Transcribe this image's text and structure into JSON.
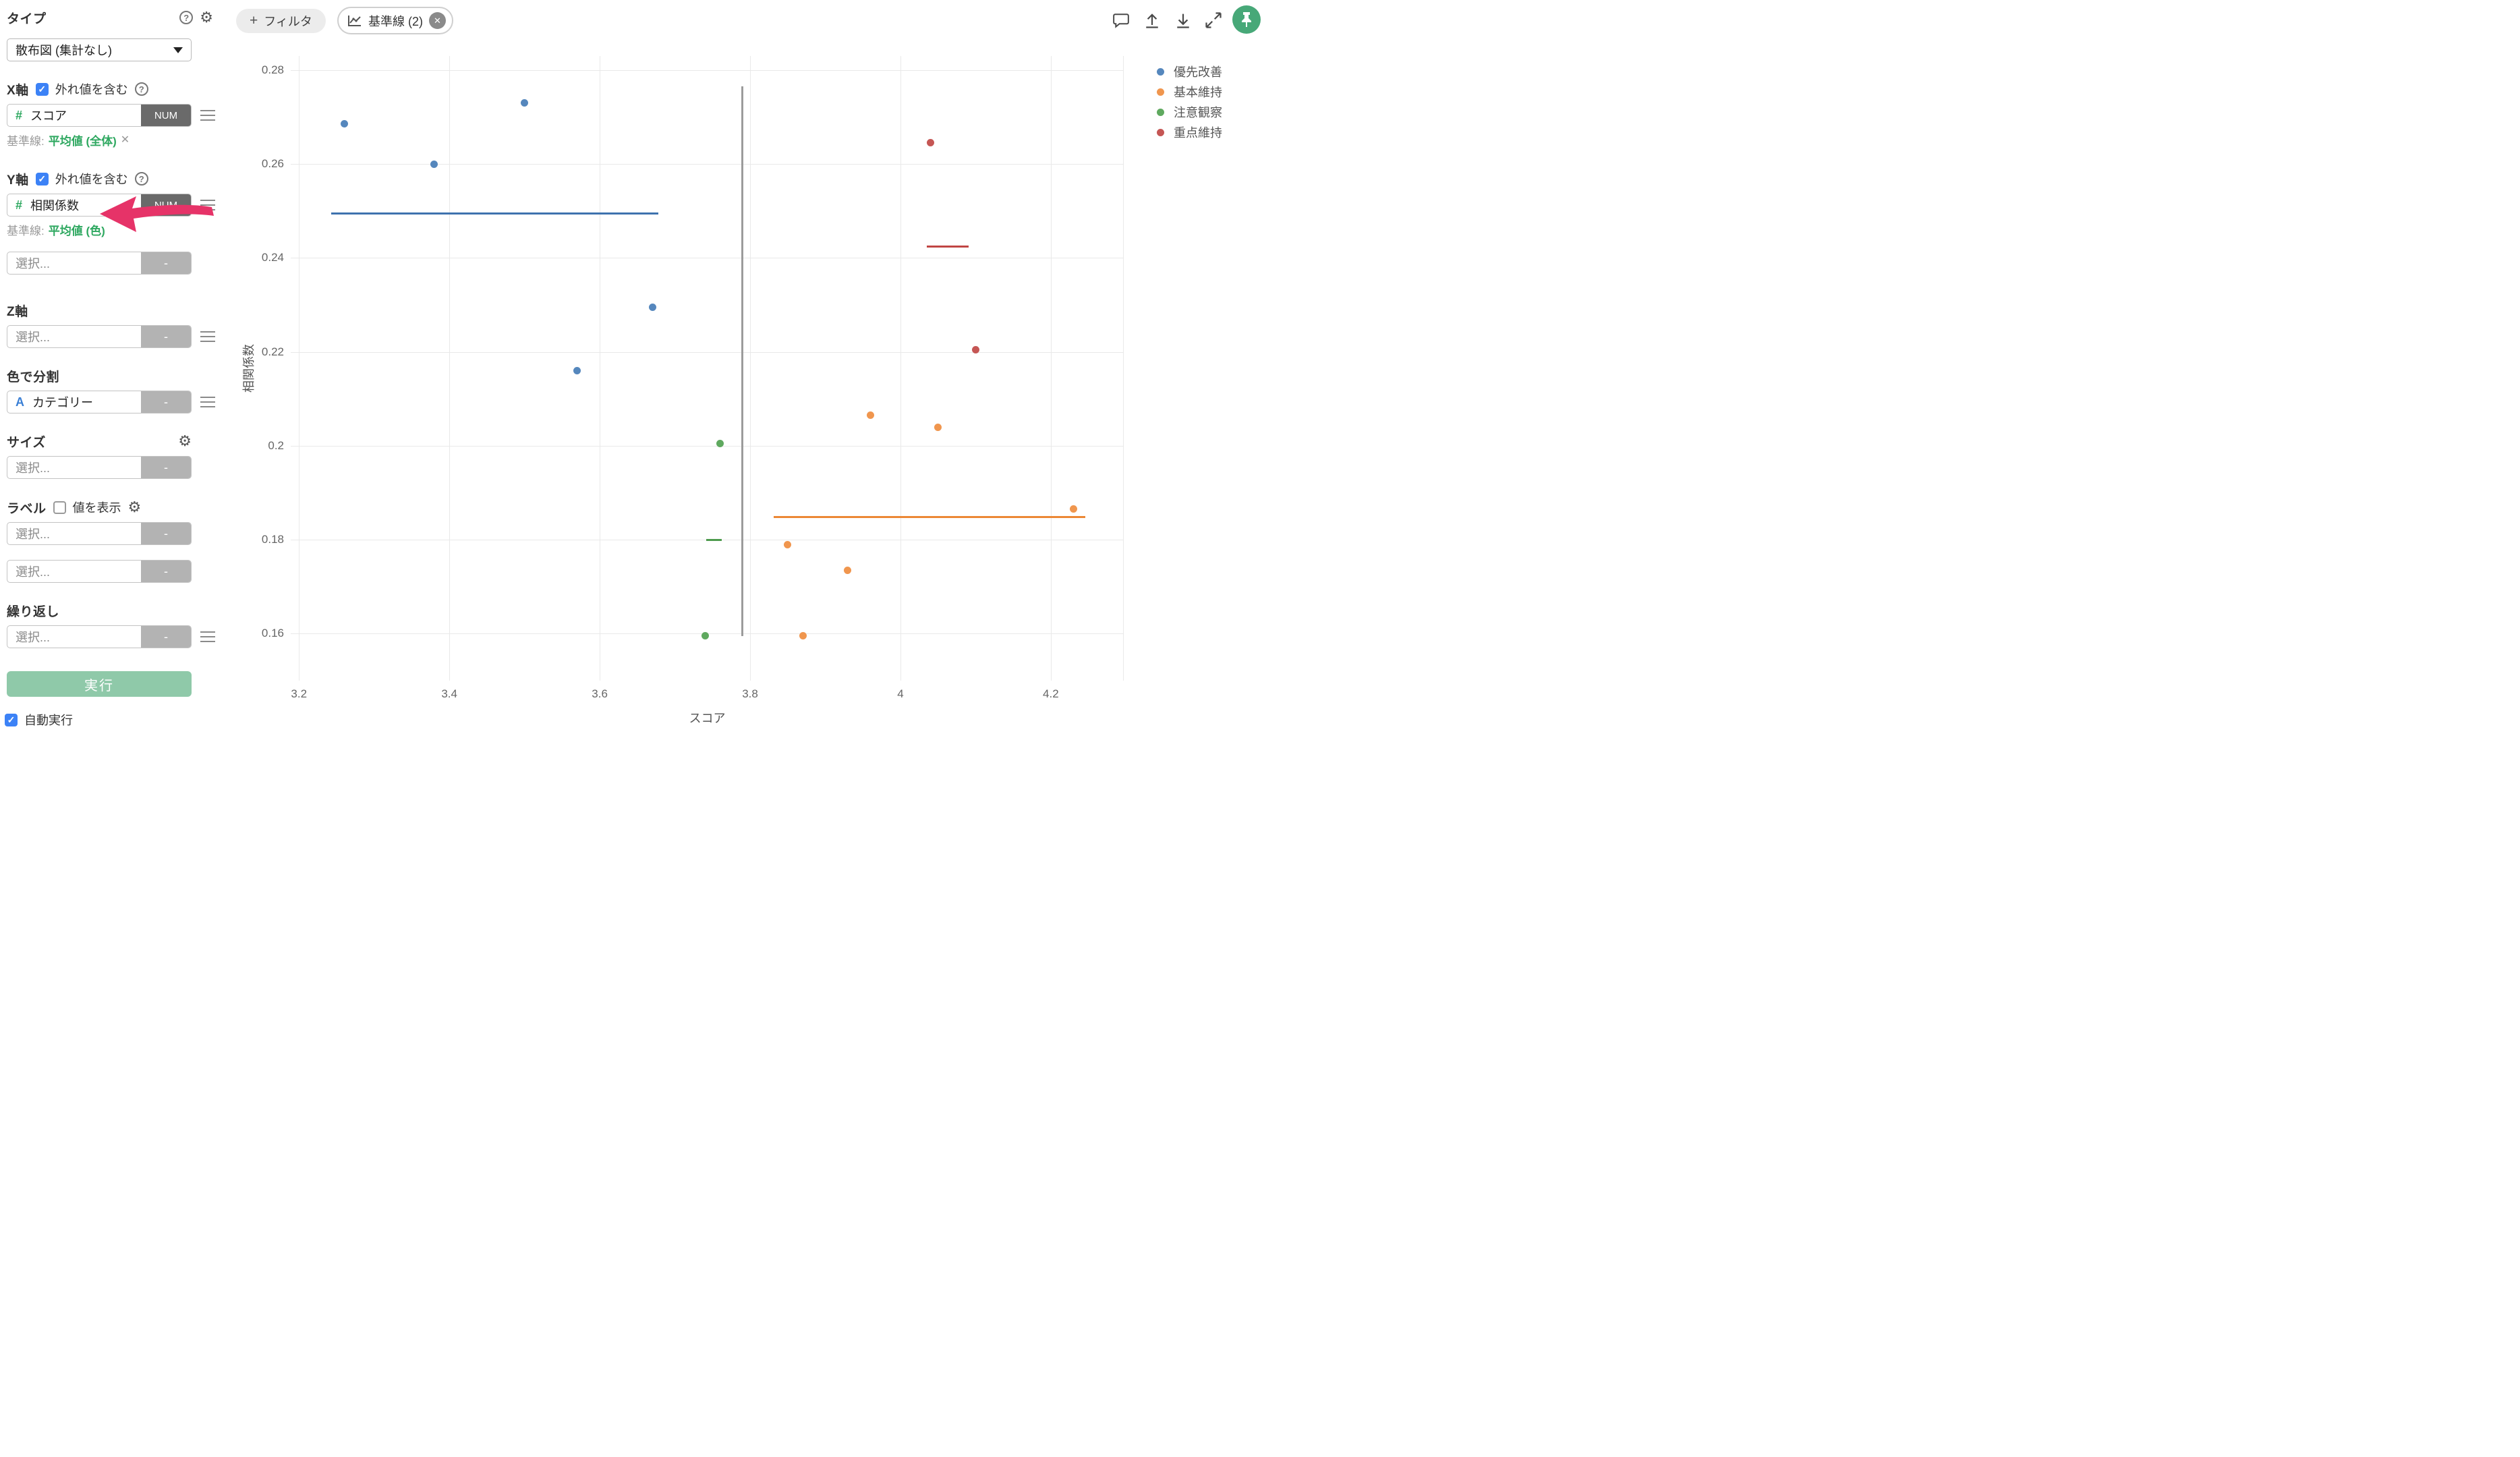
{
  "sidebar": {
    "type_section": {
      "label": "タイプ",
      "dropdown_value": "散布図 (集計なし)"
    },
    "x_axis": {
      "label": "X軸",
      "outlier_label": "外れ値を含む",
      "field_value": "スコア",
      "field_type": "NUM",
      "field_icon": "#",
      "baseline_prefix": "基準線:",
      "baseline_value": "平均値 (全体)",
      "baseline_remove": "✕"
    },
    "y_axis": {
      "label": "Y軸",
      "outlier_label": "外れ値を含む",
      "field_value": "相関係数",
      "field_type": "NUM",
      "field_icon": "#",
      "baseline_prefix": "基準線:",
      "baseline_value": "平均値 (色)"
    },
    "y_axis_extra": {
      "placeholder": "選択...",
      "minus": "-"
    },
    "z_axis": {
      "label": "Z軸",
      "placeholder": "選択...",
      "minus": "-"
    },
    "color_section": {
      "label": "色で分割",
      "field_value": "カテゴリー",
      "field_icon": "A",
      "minus": "-"
    },
    "size_section": {
      "label": "サイズ",
      "placeholder": "選択...",
      "minus": "-"
    },
    "label_section": {
      "label": "ラベル",
      "show_values_label": "値を表示",
      "placeholder_1": "選択...",
      "placeholder_2": "選択...",
      "minus": "-"
    },
    "repeat_section": {
      "label": "繰り返し",
      "placeholder": "選択...",
      "minus": "-"
    },
    "run_button": "実行",
    "auto_run_label": "自動実行"
  },
  "toolbar": {
    "filter_chip": {
      "plus": "+",
      "label": "フィルタ"
    },
    "baseline_chip": {
      "label": "基準線 (2)",
      "close": "✕"
    }
  },
  "legend": {
    "items": [
      {
        "label": "優先改善",
        "color": "#5587bd"
      },
      {
        "label": "基本維持",
        "color": "#f0964e"
      },
      {
        "label": "注意観察",
        "color": "#5fa95f"
      },
      {
        "label": "重点維持",
        "color": "#c55654"
      }
    ]
  },
  "chart_data": {
    "type": "scatter",
    "xlabel": "スコア",
    "ylabel": "相関係数",
    "xlim": [
      3.189,
      4.297
    ],
    "ylim": [
      0.15,
      0.283
    ],
    "x_ticks": [
      3.2,
      3.4,
      3.6,
      3.8,
      4,
      4.2
    ],
    "y_ticks": [
      0.28,
      0.26,
      0.24,
      0.22,
      0.2,
      0.18,
      0.16
    ],
    "grid": true,
    "legend_position": "top-right",
    "series": [
      {
        "name": "優先改善",
        "color": "#5587bd",
        "points": [
          [
            3.26,
            0.2685
          ],
          [
            3.38,
            0.26
          ],
          [
            3.5,
            0.273
          ],
          [
            3.57,
            0.216
          ],
          [
            3.67,
            0.2295
          ]
        ],
        "mean_line": {
          "y": 0.2495,
          "x_start": 3.243,
          "x_end": 3.678,
          "color": "#3e72ae"
        }
      },
      {
        "name": "基本維持",
        "color": "#f0964e",
        "points": [
          [
            3.85,
            0.179
          ],
          [
            3.87,
            0.1595
          ],
          [
            3.93,
            0.1735
          ],
          [
            3.96,
            0.2065
          ],
          [
            4.05,
            0.204
          ],
          [
            4.23,
            0.1865
          ]
        ],
        "mean_line": {
          "y": 0.1849,
          "x_start": 3.831,
          "x_end": 4.246,
          "color": "#ec8835"
        }
      },
      {
        "name": "注意観察",
        "color": "#5fa95f",
        "points": [
          [
            3.76,
            0.2005
          ],
          [
            3.74,
            0.1595
          ]
        ],
        "mean_line": {
          "y": 0.18,
          "x_start": 3.742,
          "x_end": 3.762,
          "color": "#4d9b4d"
        }
      },
      {
        "name": "重点維持",
        "color": "#c55654",
        "points": [
          [
            4.04,
            0.2645
          ],
          [
            4.1,
            0.2205
          ]
        ],
        "mean_line": {
          "y": 0.2424,
          "x_start": 4.035,
          "x_end": 4.091,
          "color": "#c04543"
        }
      }
    ],
    "x_baseline": {
      "x": 3.79,
      "y_start": 0.1595,
      "y_end": 0.2765,
      "color": "#9b9b9b"
    }
  },
  "annotation": {
    "type": "arrow",
    "color": "#e63368",
    "points_at": "基準線: 平均値 (色)"
  },
  "colors": {
    "accent_blue": "#3c82f6",
    "run_button_green": "#8fc9a9",
    "pin_green": "#47a878",
    "baseline_text_green": "#2ea860",
    "badge_gray": "#6a6a6a"
  }
}
